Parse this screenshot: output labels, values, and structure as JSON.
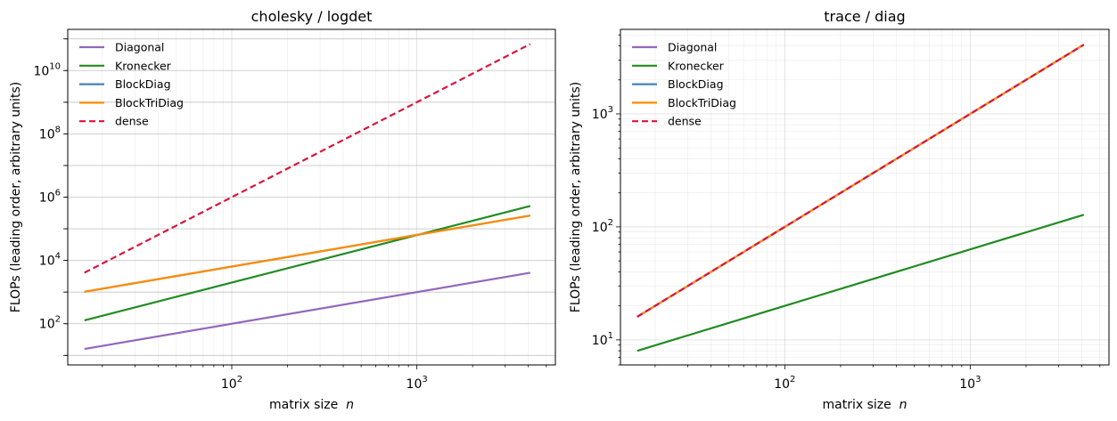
{
  "chart_data": [
    {
      "type": "line",
      "title": "cholesky / logdet",
      "xlabel": "matrix size",
      "xlabel_var": "n",
      "ylabel": "FLOPs (leading order, arbitrary units)",
      "xscale": "log",
      "yscale": "log",
      "xlim": [
        13,
        5600
      ],
      "ylim": [
        5,
        200000000000
      ],
      "xticks": [
        {
          "base": "10",
          "exp": "2",
          "value": 100
        },
        {
          "base": "10",
          "exp": "3",
          "value": 1000
        }
      ],
      "yticks": [
        {
          "base": "10",
          "exp": "2",
          "value": 100
        },
        {
          "base": "10",
          "exp": "4",
          "value": 10000
        },
        {
          "base": "10",
          "exp": "6",
          "value": 1000000
        },
        {
          "base": "10",
          "exp": "8",
          "value": 100000000
        },
        {
          "base": "10",
          "exp": "10",
          "value": 10000000000
        }
      ],
      "grid": true,
      "legend_position": "top-left",
      "series": [
        {
          "name": "Diagonal",
          "color": "#9467bd",
          "dash": "solid",
          "x": [
            16,
            4096
          ],
          "y": [
            16,
            4096
          ]
        },
        {
          "name": "Kronecker",
          "color": "#228b22",
          "dash": "solid",
          "x": [
            16,
            4096
          ],
          "y": [
            128,
            524288
          ]
        },
        {
          "name": "BlockDiag",
          "color": "#4682b4",
          "dash": "solid",
          "x": [
            16,
            4096
          ],
          "y": [
            1024,
            262144
          ]
        },
        {
          "name": "BlockTriDiag",
          "color": "#ff8c00",
          "dash": "solid",
          "x": [
            16,
            4096
          ],
          "y": [
            1024,
            262144
          ]
        },
        {
          "name": "dense",
          "color": "#dc143c",
          "dash": "dashed",
          "x": [
            16,
            4096
          ],
          "y": [
            4096,
            68719476736
          ]
        }
      ]
    },
    {
      "type": "line",
      "title": "trace / diag",
      "xlabel": "matrix size",
      "xlabel_var": "n",
      "ylabel": "FLOPs (leading order, arbitrary units)",
      "xscale": "log",
      "yscale": "log",
      "xlim": [
        13,
        5600
      ],
      "ylim": [
        6,
        5600
      ],
      "xticks": [
        {
          "base": "10",
          "exp": "2",
          "value": 100
        },
        {
          "base": "10",
          "exp": "3",
          "value": 1000
        }
      ],
      "yticks": [
        {
          "base": "10",
          "exp": "1",
          "value": 10
        },
        {
          "base": "10",
          "exp": "2",
          "value": 100
        },
        {
          "base": "10",
          "exp": "3",
          "value": 1000
        }
      ],
      "grid": true,
      "legend_position": "top-left",
      "series": [
        {
          "name": "Diagonal",
          "color": "#9467bd",
          "dash": "solid",
          "x": [
            16,
            4096
          ],
          "y": [
            16,
            4096
          ]
        },
        {
          "name": "Kronecker",
          "color": "#228b22",
          "dash": "solid",
          "x": [
            16,
            4096
          ],
          "y": [
            8,
            128
          ]
        },
        {
          "name": "BlockDiag",
          "color": "#4682b4",
          "dash": "solid",
          "x": [
            16,
            4096
          ],
          "y": [
            16,
            4096
          ]
        },
        {
          "name": "BlockTriDiag",
          "color": "#ff8c00",
          "dash": "solid",
          "x": [
            16,
            4096
          ],
          "y": [
            16,
            4096
          ]
        },
        {
          "name": "dense",
          "color": "#dc143c",
          "dash": "dashed",
          "x": [
            16,
            4096
          ],
          "y": [
            16,
            4096
          ]
        }
      ]
    }
  ]
}
